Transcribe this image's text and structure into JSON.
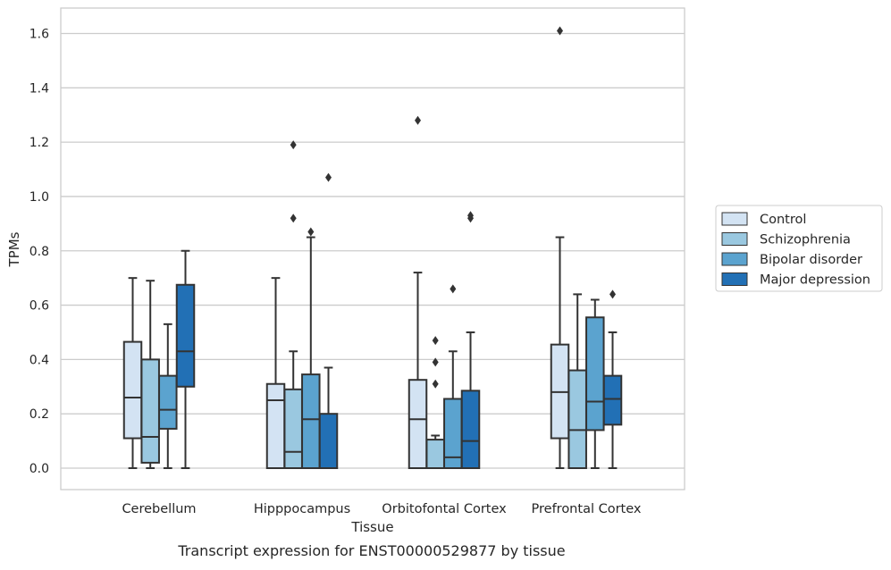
{
  "chart_data": {
    "type": "box",
    "title": "",
    "caption": "Transcript expression for ENST00000529877 by tissue",
    "xlabel": "Tissue",
    "ylabel": "TPMs",
    "ylim": [
      -0.08,
      1.69
    ],
    "yticks": [
      "0.0",
      "0.2",
      "0.4",
      "0.6",
      "0.8",
      "1.0",
      "1.2",
      "1.4",
      "1.6"
    ],
    "grid": "horizontal",
    "legend_position": "right",
    "categories": [
      "Cerebellum",
      "Hipppocampus",
      "Orbitofontal Cortex",
      "Prefrontal Cortex"
    ],
    "series": [
      {
        "name": "Control",
        "color": "#d3e3f3",
        "boxes": [
          {
            "whislo": 0.0,
            "q1": 0.11,
            "med": 0.26,
            "q3": 0.465,
            "whishi": 0.7,
            "fliers": []
          },
          {
            "whislo": 0.0,
            "q1": 0.0,
            "med": 0.25,
            "q3": 0.31,
            "whishi": 0.7,
            "fliers": []
          },
          {
            "whislo": 0.0,
            "q1": 0.0,
            "med": 0.18,
            "q3": 0.325,
            "whishi": 0.72,
            "fliers": [
              1.28
            ]
          },
          {
            "whislo": 0.0,
            "q1": 0.11,
            "med": 0.28,
            "q3": 0.455,
            "whishi": 0.85,
            "fliers": [
              1.61
            ]
          }
        ]
      },
      {
        "name": "Schizophrenia",
        "color": "#9ac8e0",
        "boxes": [
          {
            "whislo": 0.0,
            "q1": 0.02,
            "med": 0.115,
            "q3": 0.4,
            "whishi": 0.69,
            "fliers": []
          },
          {
            "whislo": 0.0,
            "q1": 0.0,
            "med": 0.06,
            "q3": 0.29,
            "whishi": 0.43,
            "fliers": [
              0.92,
              1.19
            ]
          },
          {
            "whislo": 0.0,
            "q1": 0.0,
            "med": 0.0,
            "q3": 0.105,
            "whishi": 0.12,
            "fliers": [
              0.31,
              0.39,
              0.47
            ]
          },
          {
            "whislo": 0.0,
            "q1": 0.0,
            "med": 0.14,
            "q3": 0.36,
            "whishi": 0.64,
            "fliers": []
          }
        ]
      },
      {
        "name": "Bipolar disorder",
        "color": "#5ba3cf",
        "boxes": [
          {
            "whislo": 0.0,
            "q1": 0.145,
            "med": 0.215,
            "q3": 0.34,
            "whishi": 0.53,
            "fliers": []
          },
          {
            "whislo": 0.0,
            "q1": 0.0,
            "med": 0.18,
            "q3": 0.345,
            "whishi": 0.85,
            "fliers": [
              0.87
            ]
          },
          {
            "whislo": 0.0,
            "q1": 0.0,
            "med": 0.04,
            "q3": 0.255,
            "whishi": 0.43,
            "fliers": [
              0.66
            ]
          },
          {
            "whislo": 0.0,
            "q1": 0.14,
            "med": 0.245,
            "q3": 0.555,
            "whishi": 0.62,
            "fliers": []
          }
        ]
      },
      {
        "name": "Major depression",
        "color": "#2270b5",
        "boxes": [
          {
            "whislo": 0.0,
            "q1": 0.3,
            "med": 0.43,
            "q3": 0.675,
            "whishi": 0.8,
            "fliers": []
          },
          {
            "whislo": 0.0,
            "q1": 0.0,
            "med": 0.0,
            "q3": 0.2,
            "whishi": 0.37,
            "fliers": [
              1.07
            ]
          },
          {
            "whislo": 0.0,
            "q1": 0.0,
            "med": 0.1,
            "q3": 0.285,
            "whishi": 0.5,
            "fliers": [
              0.92,
              0.93
            ]
          },
          {
            "whislo": 0.0,
            "q1": 0.16,
            "med": 0.255,
            "q3": 0.34,
            "whishi": 0.5,
            "fliers": [
              0.64
            ]
          }
        ]
      }
    ],
    "colors": {
      "edge": "#333333",
      "grid": "#cccccc",
      "frame": "#cccccc",
      "text": "#262626"
    }
  }
}
